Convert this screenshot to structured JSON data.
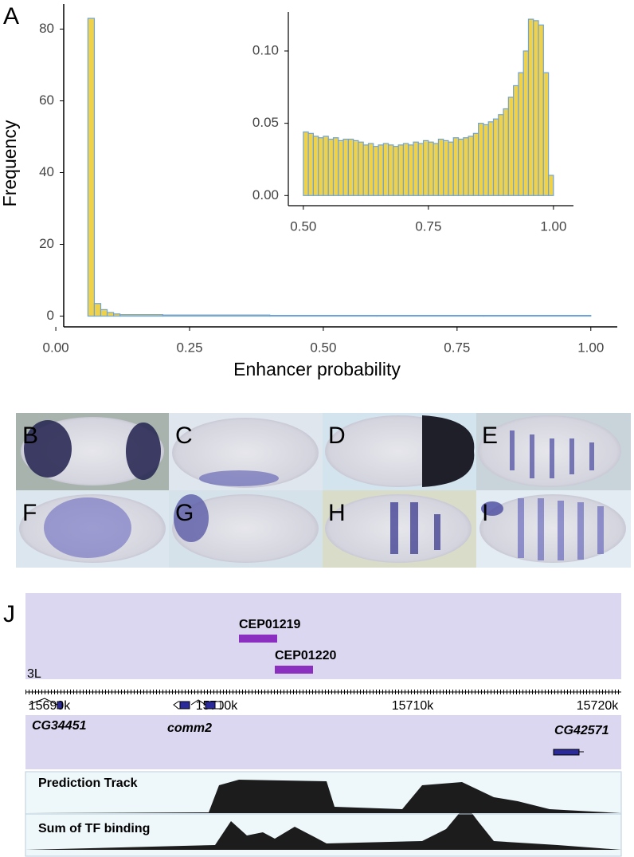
{
  "chart_data": [
    {
      "type": "histogram",
      "panel": "A",
      "xlabel": "Enhancer probability",
      "ylabel": "Frequency",
      "bins": [
        0.06,
        0.072,
        0.084,
        0.096,
        0.108,
        0.12,
        0.2,
        0.4,
        0.6,
        0.8,
        1.0
      ],
      "values": [
        83,
        3.5,
        1.8,
        1,
        0.6,
        0.4,
        0.3,
        0.2,
        0.2,
        0.2
      ],
      "color": "#efd24a",
      "edgecolor": "#6fa3d6",
      "xlim": [
        -0.015,
        1.045
      ],
      "ylim": [
        -3,
        87
      ],
      "xticks": [
        {
          "value": 0,
          "label": "0.00"
        },
        {
          "value": 0.25,
          "label": "0.25"
        },
        {
          "value": 0.5,
          "label": "0.50"
        },
        {
          "value": 0.75,
          "label": "0.75"
        },
        {
          "value": 1,
          "label": "1.00"
        }
      ],
      "yticks": [
        0,
        20,
        40,
        60,
        80
      ]
    },
    {
      "type": "histogram",
      "bins": [
        0.5,
        0.51,
        0.52,
        0.53,
        0.54,
        0.55,
        0.56,
        0.57,
        0.58,
        0.59,
        0.6,
        0.61,
        0.62,
        0.63,
        0.64,
        0.65,
        0.66,
        0.67,
        0.68,
        0.69,
        0.7,
        0.71,
        0.72,
        0.73,
        0.74,
        0.75,
        0.76,
        0.77,
        0.78,
        0.79,
        0.8,
        0.81,
        0.82,
        0.83,
        0.84,
        0.85,
        0.86,
        0.87,
        0.88,
        0.89,
        0.9,
        0.91,
        0.92,
        0.93,
        0.94,
        0.95,
        0.96,
        0.97,
        0.98,
        0.99,
        1.0
      ],
      "values": [
        0.044,
        0.043,
        0.041,
        0.04,
        0.041,
        0.039,
        0.04,
        0.038,
        0.039,
        0.039,
        0.038,
        0.037,
        0.035,
        0.036,
        0.034,
        0.035,
        0.036,
        0.035,
        0.034,
        0.035,
        0.036,
        0.035,
        0.037,
        0.036,
        0.038,
        0.037,
        0.036,
        0.039,
        0.038,
        0.037,
        0.04,
        0.039,
        0.04,
        0.041,
        0.043,
        0.05,
        0.049,
        0.051,
        0.053,
        0.056,
        0.06,
        0.068,
        0.076,
        0.085,
        0.1,
        0.122,
        0.121,
        0.118,
        0.085,
        0.014
      ],
      "color": "#efd24a",
      "edgecolor": "#6fa3d6",
      "xlim": [
        0.47,
        1.04
      ],
      "ylim": [
        -0.007,
        0.127
      ],
      "xticks": [
        {
          "value": 0.5,
          "label": "0.50"
        },
        {
          "value": 0.75,
          "label": "0.75"
        },
        {
          "value": 1,
          "label": "1.00"
        }
      ],
      "yticks": [
        {
          "value": 0,
          "label": "0.00"
        },
        {
          "value": 0.05,
          "label": "0.05"
        },
        {
          "value": 0.1,
          "label": "0.10"
        }
      ]
    }
  ],
  "embryos": {
    "labels": [
      "B",
      "C",
      "D",
      "E",
      "F",
      "G",
      "H",
      "I"
    ]
  },
  "genome": {
    "panel": "J",
    "enhancers": [
      "CEP01219",
      "CEP01220"
    ],
    "chromosome": "3L",
    "positions": [
      "15690k",
      "15700k",
      "15710k",
      "15720k"
    ],
    "genes": [
      "CG34451",
      "comm2",
      "CG42571"
    ],
    "tracks": [
      "Prediction Track",
      "Sum of TF binding"
    ]
  }
}
